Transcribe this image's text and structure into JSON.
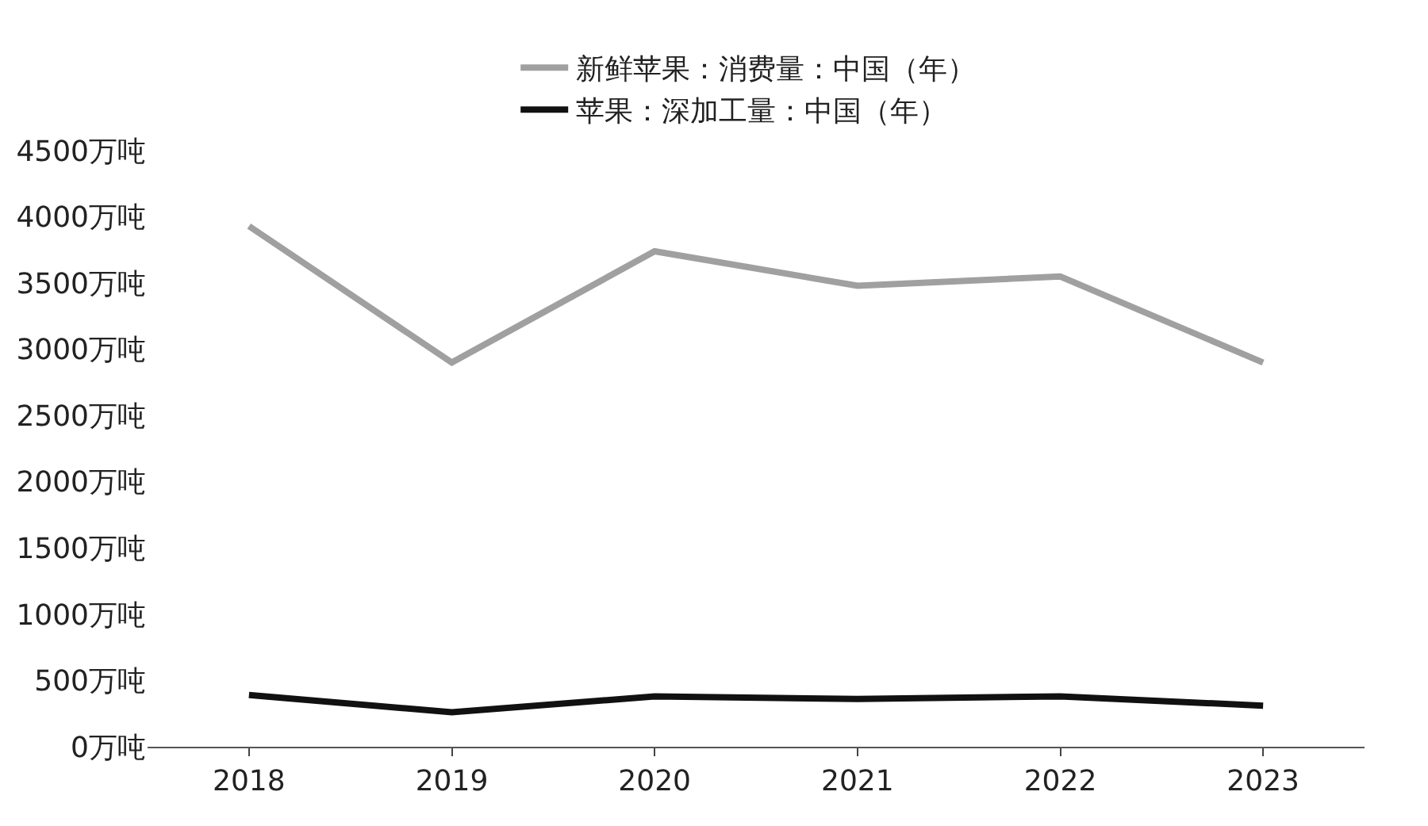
{
  "chart_data": {
    "type": "line",
    "categories": [
      "2018",
      "2019",
      "2020",
      "2021",
      "2022",
      "2023"
    ],
    "series": [
      {
        "name": "新鲜苹果：消费量：中国（年）",
        "color": "#a0a0a0",
        "values": [
          3930,
          2900,
          3740,
          3480,
          3550,
          2900
        ]
      },
      {
        "name": "苹果：深加工量：中国（年）",
        "color": "#111111",
        "values": [
          390,
          260,
          380,
          360,
          380,
          310
        ]
      }
    ],
    "ylim": [
      0,
      4500
    ],
    "yticks": [
      {
        "value": 0,
        "label": "0万吨"
      },
      {
        "value": 500,
        "label": "500万吨"
      },
      {
        "value": 1000,
        "label": "1000万吨"
      },
      {
        "value": 1500,
        "label": "1500万吨"
      },
      {
        "value": 2000,
        "label": "2000万吨"
      },
      {
        "value": 2500,
        "label": "2500万吨"
      },
      {
        "value": 3000,
        "label": "3000万吨"
      },
      {
        "value": 3500,
        "label": "3500万吨"
      },
      {
        "value": 4000,
        "label": "4000万吨"
      },
      {
        "value": 4500,
        "label": "4500万吨"
      }
    ],
    "legend": "top",
    "marker": "none",
    "line_style": "solid"
  }
}
